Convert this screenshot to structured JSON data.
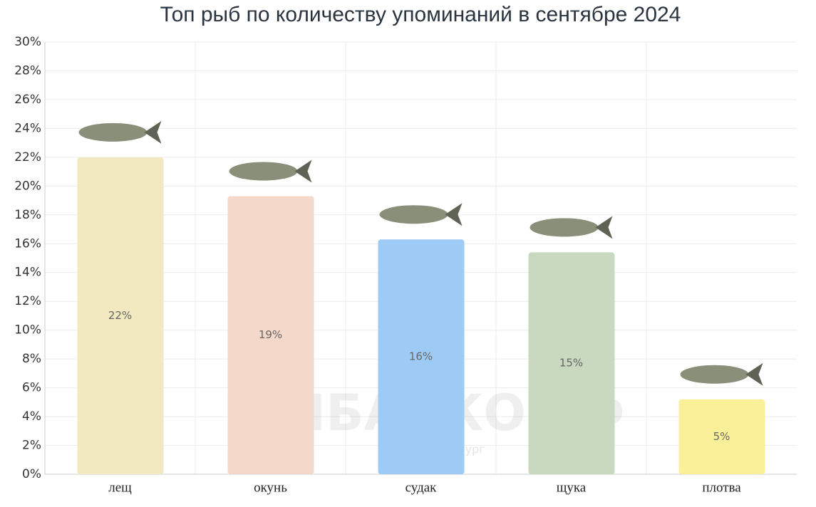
{
  "chart_data": {
    "type": "bar",
    "title": "Топ рыб по количеству упоминаний в сентябре 2024",
    "categories": [
      "лещ",
      "окунь",
      "судак",
      "щука",
      "плотва"
    ],
    "values": [
      22,
      19.3,
      16.3,
      15.4,
      5.2
    ],
    "value_labels": [
      "22%",
      "19%",
      "16%",
      "15%",
      "5%"
    ],
    "colors": [
      "#f3e9c0",
      "#f4d9cb",
      "#9ecbf5",
      "#c8d9c0",
      "#fbf09a"
    ],
    "ylim": [
      0,
      30
    ],
    "yticks": [
      {
        "value": 0,
        "label": "0%"
      },
      {
        "value": 2,
        "label": "2%"
      },
      {
        "value": 4,
        "label": "4%"
      },
      {
        "value": 6,
        "label": "6%"
      },
      {
        "value": 8,
        "label": "8%"
      },
      {
        "value": 10,
        "label": "10%"
      },
      {
        "value": 12,
        "label": "12%"
      },
      {
        "value": 14,
        "label": "14%"
      },
      {
        "value": 16,
        "label": "16%"
      },
      {
        "value": 18,
        "label": "18%"
      },
      {
        "value": 20,
        "label": "20%"
      },
      {
        "value": 22,
        "label": "22%"
      },
      {
        "value": 24,
        "label": "24%"
      },
      {
        "value": 26,
        "label": "26%"
      },
      {
        "value": 28,
        "label": "28%"
      },
      {
        "value": 30,
        "label": "30%"
      }
    ],
    "grid": true,
    "watermark": {
      "title": "РЫБАЧКОФФ",
      "subtitle": "Санкт-Петербург"
    }
  }
}
